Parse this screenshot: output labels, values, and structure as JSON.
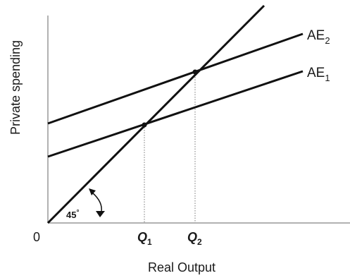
{
  "diagram": {
    "y_axis_label": "Private spending",
    "x_axis_label": "Real Output",
    "origin_label": "0",
    "angle_label": "45",
    "angle_unit": "°",
    "curves": {
      "ae2": {
        "base": "AE",
        "sub": "2"
      },
      "ae1": {
        "base": "AE",
        "sub": "1"
      }
    },
    "ticks": [
      {
        "base": "Q",
        "sub": "1"
      },
      {
        "base": "Q",
        "sub": "2"
      }
    ]
  }
}
